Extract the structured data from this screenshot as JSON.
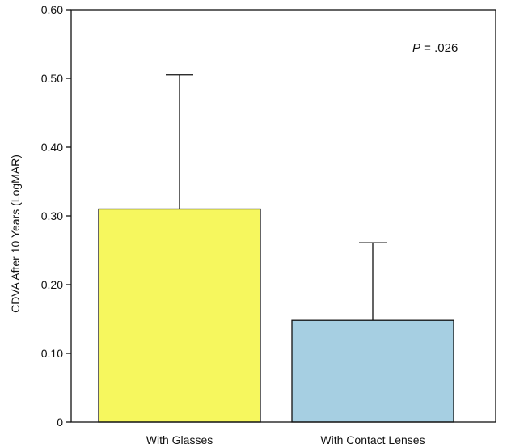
{
  "chart_data": {
    "type": "bar",
    "categories": [
      "With Glasses",
      "With Contact Lenses"
    ],
    "values": [
      0.31,
      0.148
    ],
    "error_upper": [
      0.505,
      0.261
    ],
    "colors": [
      "#f6f75e",
      "#a6cfe2"
    ],
    "ylabel": "CDVA After 10 Years (LogMAR)",
    "xlabel": "",
    "ylim": [
      0,
      0.6
    ],
    "yticks": [
      0,
      0.1,
      0.2,
      0.3,
      0.4,
      0.5,
      0.6
    ],
    "ytick_labels": [
      "0",
      "0.10",
      "0.20",
      "0.30",
      "0.40",
      "0.50",
      "0.60"
    ],
    "grid": false,
    "annotation": {
      "symbol": "P",
      "text": " = .026"
    }
  }
}
